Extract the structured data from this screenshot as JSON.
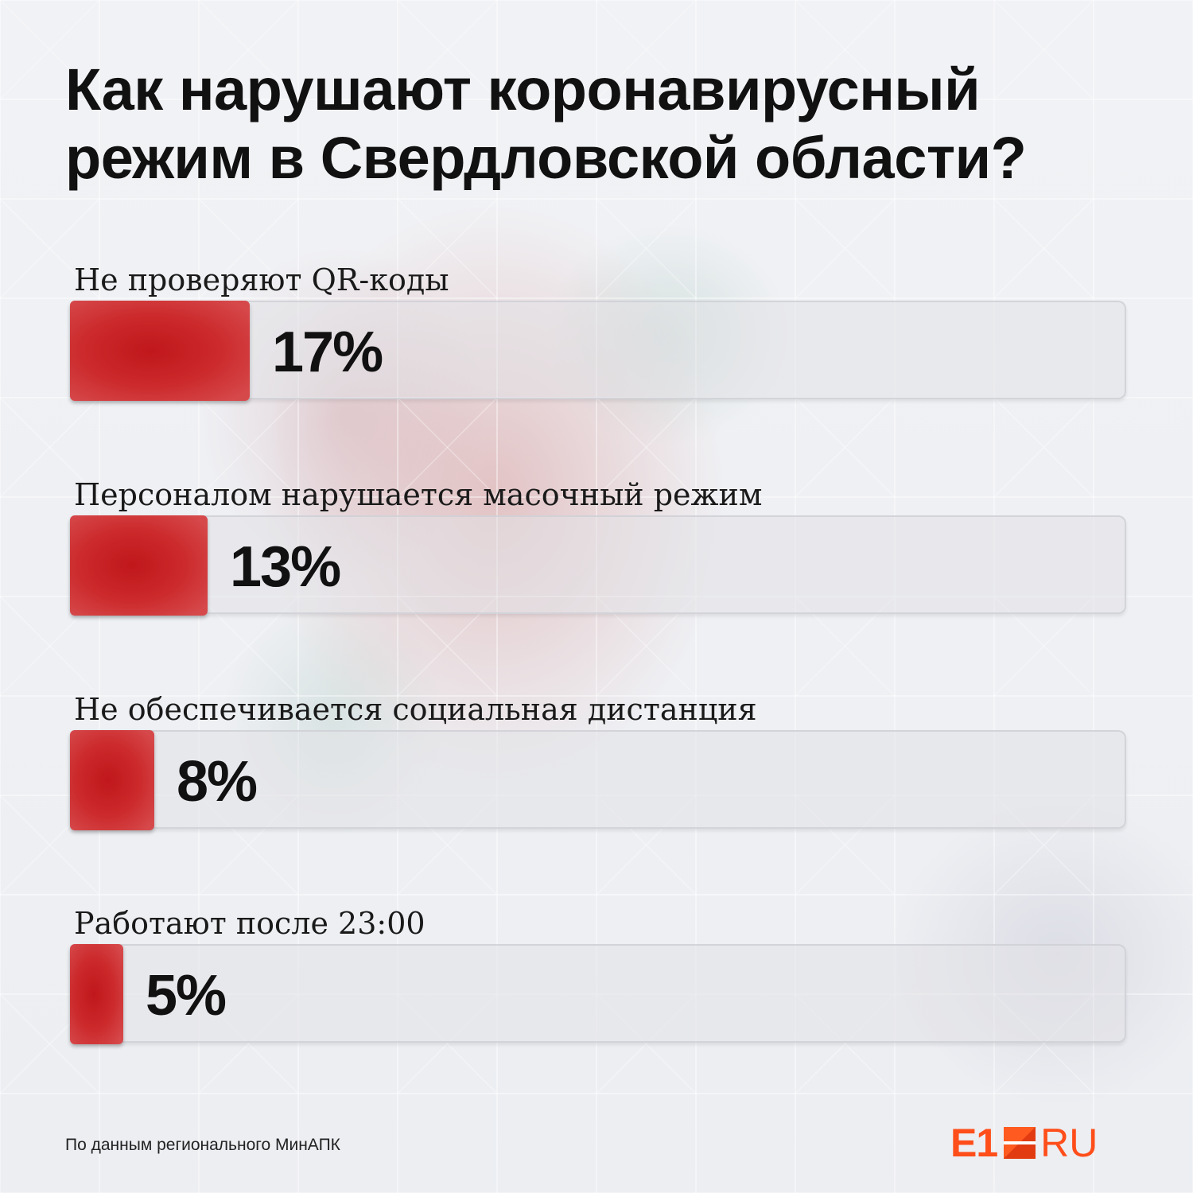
{
  "title_lines": [
    "Как нарушают коронавирусный",
    "режим в Свердловской области?"
  ],
  "source": "По данным регионального МинАПК",
  "logo": {
    "primary": "E1",
    "secondary": "RU"
  },
  "colors": {
    "bar": "#c0171b",
    "accent": "#ff4e1a",
    "text": "#111111"
  },
  "chart_data": {
    "type": "bar",
    "orientation": "horizontal",
    "title": "Как нарушают коронавирусный режим в Свердловской области?",
    "categories": [
      "Не проверяют QR-коды",
      "Персоналом нарушается масочный режим",
      "Не обеспечивается социальная дистанция",
      "Работают после 23:00"
    ],
    "values": [
      17,
      13,
      8,
      5
    ],
    "value_labels": [
      "17%",
      "13%",
      "8%",
      "5%"
    ],
    "xlim": [
      0,
      100
    ],
    "grid": false,
    "legend": "none"
  }
}
